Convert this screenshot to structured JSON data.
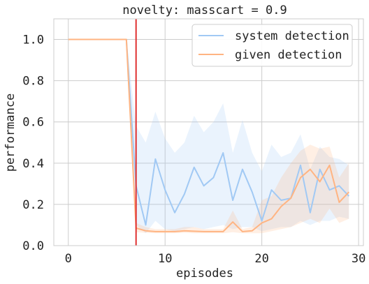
{
  "chart_data": {
    "type": "line",
    "title": "novelty: masscart = 0.9",
    "xlabel": "episodes",
    "ylabel": "performance",
    "xlim": [
      -1.5,
      30.5
    ],
    "ylim": [
      0.0,
      1.1
    ],
    "x_ticks": [
      0,
      10,
      20,
      30
    ],
    "x_tick_labels": [
      "0",
      "10",
      "20",
      "30"
    ],
    "y_ticks": [
      0.0,
      0.2,
      0.4,
      0.6,
      0.8,
      1.0
    ],
    "y_tick_labels": [
      "0.0",
      "0.2",
      "0.4",
      "0.6",
      "0.8",
      "1.0"
    ],
    "grid": true,
    "legend_position": "top-right",
    "novelty_line": {
      "x": 7,
      "color": "#e03030"
    },
    "x": [
      0,
      1,
      2,
      3,
      4,
      5,
      6,
      7,
      8,
      9,
      10,
      11,
      12,
      13,
      14,
      15,
      16,
      17,
      18,
      19,
      20,
      21,
      22,
      23,
      24,
      25,
      26,
      27,
      28,
      29
    ],
    "series": [
      {
        "name": "system detection",
        "color": "#a1c9f4",
        "values": [
          1.0,
          1.0,
          1.0,
          1.0,
          1.0,
          1.0,
          1.0,
          0.29,
          0.1,
          0.42,
          0.27,
          0.16,
          0.25,
          0.38,
          0.29,
          0.33,
          0.45,
          0.22,
          0.37,
          0.26,
          0.12,
          0.27,
          0.22,
          0.23,
          0.39,
          0.16,
          0.37,
          0.27,
          0.29,
          0.24
        ],
        "lower": [
          1.0,
          1.0,
          1.0,
          1.0,
          1.0,
          1.0,
          1.0,
          0.1,
          0.06,
          0.12,
          0.08,
          0.07,
          0.08,
          0.09,
          0.08,
          0.09,
          0.1,
          0.08,
          0.09,
          0.09,
          0.07,
          0.08,
          0.09,
          0.09,
          0.12,
          0.1,
          0.12,
          0.12,
          0.14,
          0.13
        ],
        "upper": [
          1.0,
          1.0,
          1.0,
          1.0,
          1.0,
          1.0,
          1.0,
          0.58,
          0.5,
          0.65,
          0.52,
          0.45,
          0.5,
          0.63,
          0.55,
          0.6,
          0.69,
          0.45,
          0.61,
          0.45,
          0.36,
          0.49,
          0.43,
          0.45,
          0.54,
          0.37,
          0.48,
          0.43,
          0.42,
          0.39
        ]
      },
      {
        "name": "given detection",
        "color": "#ffb482",
        "values": [
          1.0,
          1.0,
          1.0,
          1.0,
          1.0,
          1.0,
          1.0,
          0.085,
          0.072,
          0.068,
          0.068,
          0.068,
          0.072,
          0.07,
          0.068,
          0.068,
          0.068,
          0.115,
          0.068,
          0.072,
          0.11,
          0.13,
          0.19,
          0.23,
          0.33,
          0.37,
          0.31,
          0.39,
          0.21,
          0.26
        ],
        "lower": [
          1.0,
          1.0,
          1.0,
          1.0,
          1.0,
          1.0,
          1.0,
          0.065,
          0.062,
          0.06,
          0.06,
          0.06,
          0.062,
          0.06,
          0.06,
          0.06,
          0.06,
          0.065,
          0.06,
          0.06,
          0.06,
          0.07,
          0.08,
          0.09,
          0.11,
          0.13,
          0.11,
          0.18,
          0.11,
          0.13
        ],
        "upper": [
          1.0,
          1.0,
          1.0,
          1.0,
          1.0,
          1.0,
          1.0,
          0.11,
          0.09,
          0.08,
          0.08,
          0.08,
          0.09,
          0.09,
          0.08,
          0.08,
          0.08,
          0.17,
          0.08,
          0.09,
          0.22,
          0.24,
          0.33,
          0.4,
          0.46,
          0.49,
          0.47,
          0.48,
          0.33,
          0.4
        ]
      }
    ]
  }
}
